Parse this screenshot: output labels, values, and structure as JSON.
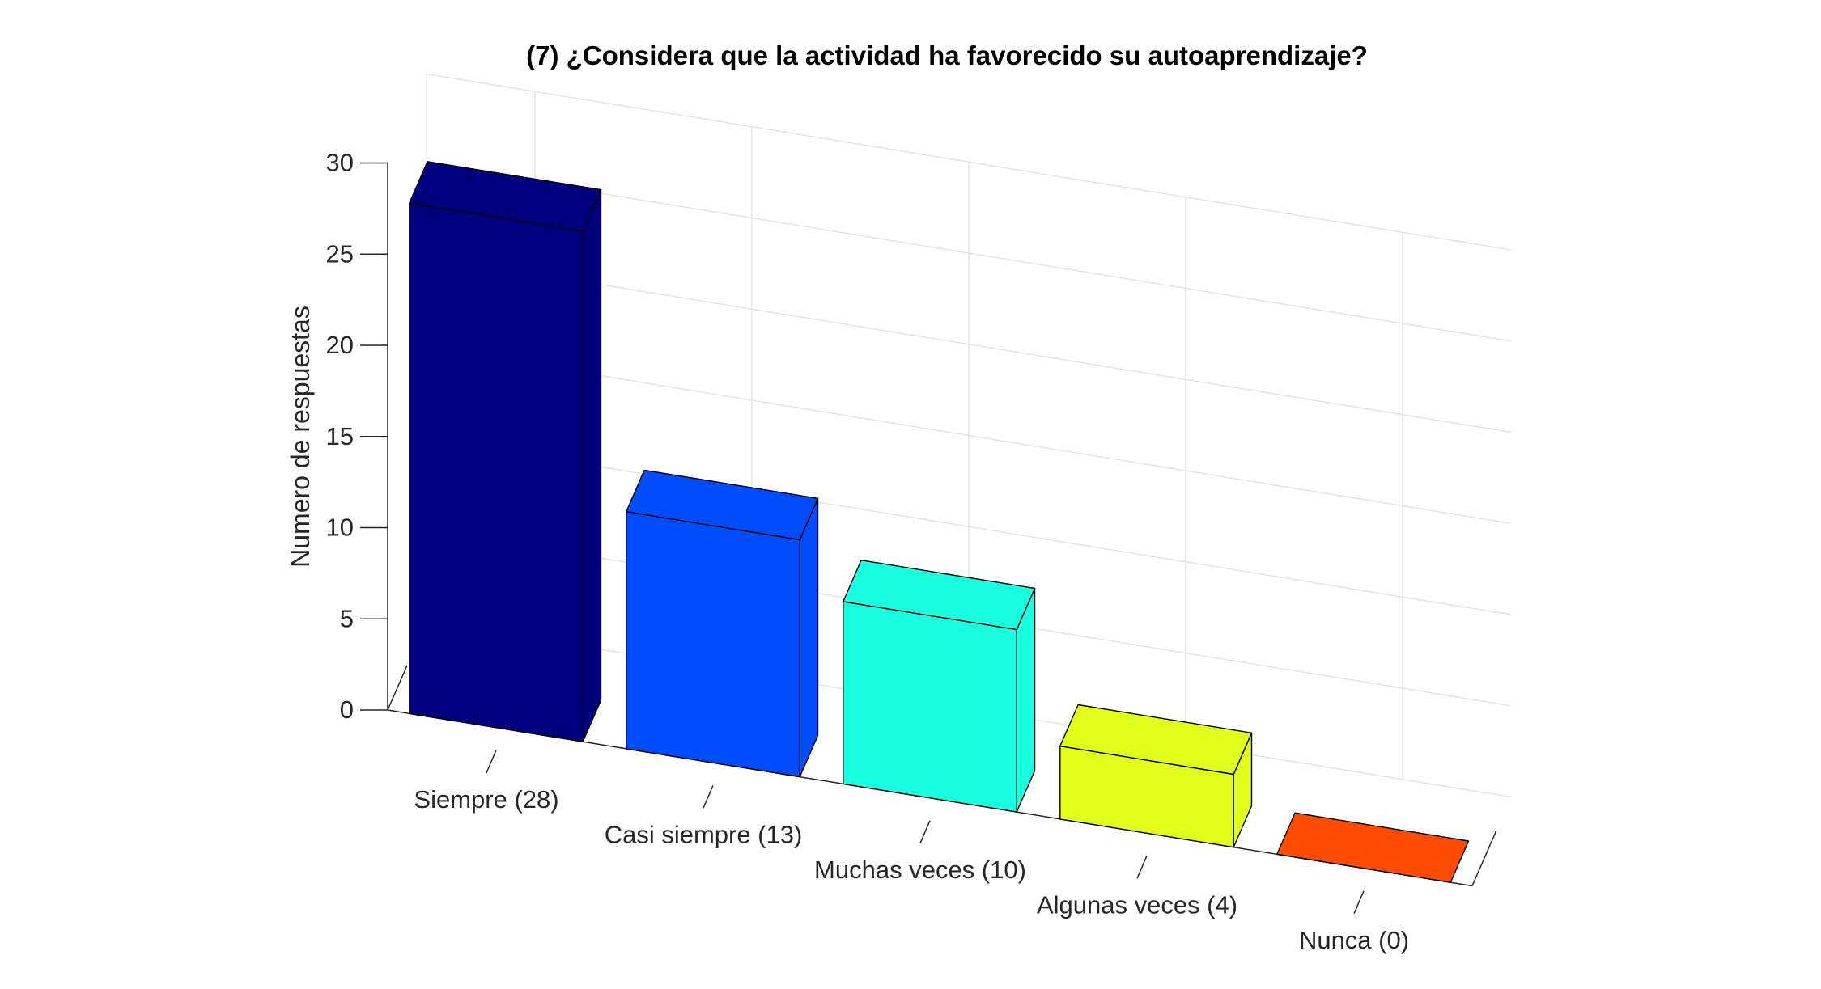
{
  "chart_data": {
    "type": "bar",
    "title": "(7) ¿Considera que la actividad ha favorecido su autoaprendizaje?",
    "ylabel": "Numero de respuestas",
    "xlabel": "",
    "categories": [
      "Siempre (28)",
      "Casi siempre (13)",
      "Muchas veces (10)",
      "Algunas veces (4)",
      "Nunca (0)"
    ],
    "values": [
      28,
      13,
      10,
      4,
      0
    ],
    "ylim": [
      0,
      30
    ],
    "yticks": [
      "0",
      "5",
      "10",
      "15",
      "20",
      "25",
      "30"
    ],
    "colors": [
      "#00007f",
      "#004cff",
      "#1affe0",
      "#e0ff1a",
      "#ff4c00"
    ],
    "grid": true,
    "view": "3d-bar"
  }
}
